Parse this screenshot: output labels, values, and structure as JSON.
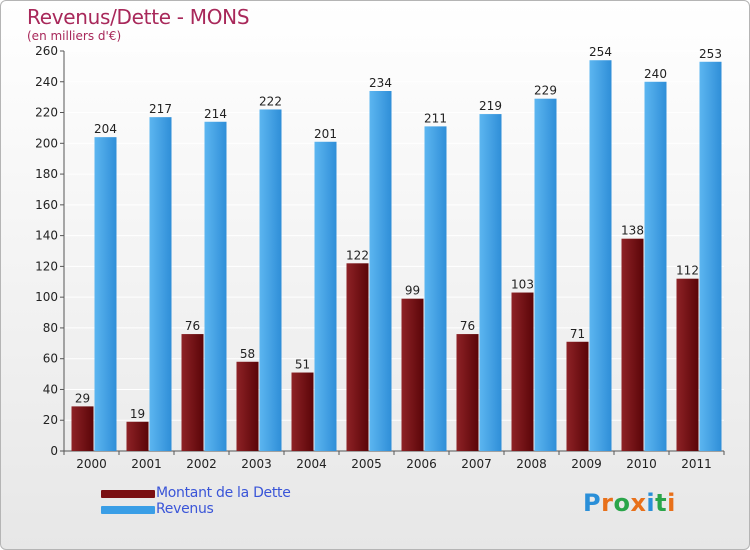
{
  "title": "Revenus/Dette - MONS",
  "subtitle": "(en milliers d'€)",
  "colors": {
    "title": "#a8285a",
    "dette": "#7a0f12",
    "revenus": "#3a9ee6",
    "legend_text": "#3a55d8"
  },
  "chart_data": {
    "type": "bar",
    "title": "Revenus/Dette - MONS",
    "ylabel": "(en milliers d'€)",
    "xlabel": "",
    "ylim": [
      0,
      260
    ],
    "ytick_step": 20,
    "grid": "horizontal",
    "legend_position": "bottom",
    "categories": [
      "2000",
      "2001",
      "2002",
      "2003",
      "2004",
      "2005",
      "2006",
      "2007",
      "2008",
      "2009",
      "2010",
      "2011"
    ],
    "series": [
      {
        "name": "Montant de la Dette",
        "color": "#7a0f12",
        "values": [
          29,
          19,
          76,
          58,
          51,
          122,
          99,
          76,
          103,
          71,
          138,
          112
        ]
      },
      {
        "name": "Revenus",
        "color": "#3a9ee6",
        "values": [
          204,
          217,
          214,
          222,
          201,
          234,
          211,
          219,
          229,
          254,
          240,
          253
        ]
      }
    ]
  },
  "legend": {
    "items": [
      {
        "label": "Montant de la Dette",
        "color": "#7a0f12"
      },
      {
        "label": "Revenus",
        "color": "#3a9ee6"
      }
    ]
  },
  "logo": {
    "text": "Proxiti",
    "letter_colors": [
      "#2a8fd8",
      "#e8701a",
      "#2aa54a",
      "#e8701a",
      "#2a8fd8",
      "#2aa54a",
      "#e8701a"
    ]
  }
}
